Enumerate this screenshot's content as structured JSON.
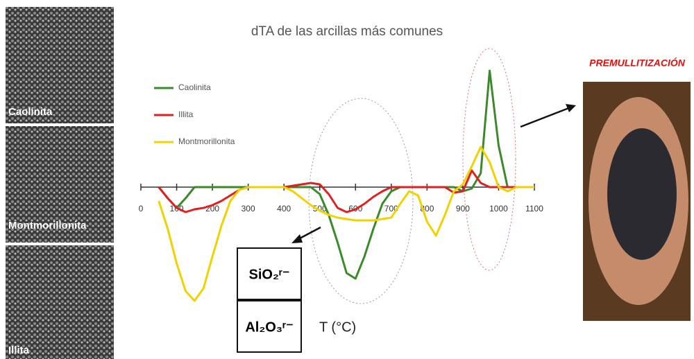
{
  "chart_data": {
    "type": "line",
    "title": "dTA de las arcillas más comunes",
    "x_label": "T (°C)",
    "x": [
      0,
      25,
      50,
      75,
      100,
      125,
      150,
      175,
      200,
      225,
      250,
      275,
      300,
      325,
      350,
      375,
      400,
      425,
      450,
      475,
      500,
      525,
      550,
      575,
      600,
      625,
      650,
      675,
      700,
      725,
      750,
      775,
      800,
      825,
      850,
      875,
      900,
      925,
      950,
      975,
      1000,
      1025,
      1050,
      1075,
      1100
    ],
    "series": [
      {
        "name": "Caolinita",
        "color": "#3a8a2a",
        "values": [
          null,
          null,
          0,
          -0.8,
          -1.5,
          -0.8,
          0,
          0,
          0,
          0,
          0,
          0,
          0,
          0,
          0,
          0,
          0,
          0,
          0,
          0,
          -0.5,
          -2,
          -4,
          -6.2,
          -6.6,
          -5,
          -3,
          -1.2,
          -0.3,
          0,
          0,
          0,
          0,
          0,
          0,
          0,
          -0.3,
          -0.1,
          1,
          8.4,
          3,
          0,
          0,
          0,
          0
        ]
      },
      {
        "name": "Illita",
        "color": "#e02020",
        "values": [
          null,
          null,
          0,
          -0.8,
          -1.5,
          -1.8,
          -1.6,
          -1.5,
          -1.3,
          -1,
          -0.6,
          -0.2,
          0,
          0,
          0,
          0,
          0,
          0.1,
          0.2,
          0.3,
          0.2,
          -0.5,
          -1.5,
          -1.8,
          -1.6,
          -1.2,
          -0.7,
          -0.3,
          0,
          0,
          0,
          0,
          0,
          0,
          0,
          -0.4,
          -0.3,
          1.2,
          0.3,
          0,
          0,
          0,
          0,
          0,
          0
        ]
      },
      {
        "name": "Montmorillonita",
        "color": "#f2d100",
        "values": [
          null,
          null,
          -1,
          -3,
          -5.5,
          -7.5,
          -8.2,
          -7.3,
          -5,
          -2.8,
          -1,
          -0.2,
          0,
          0,
          0,
          0,
          0,
          -0.3,
          -0.8,
          -1.3,
          -1.7,
          -2,
          -2.2,
          -2.3,
          -2.4,
          -2.4,
          -2.4,
          -2.3,
          -2.2,
          -1.2,
          -0.3,
          -0.6,
          -2.5,
          -3.5,
          -2,
          -0.3,
          0.2,
          1.5,
          2.9,
          1.8,
          0,
          -0.3,
          0,
          0,
          0
        ]
      }
    ],
    "xlim": [
      0,
      1100
    ],
    "xticks": [
      0,
      100,
      200,
      300,
      400,
      500,
      600,
      700,
      800,
      900,
      1000,
      1100
    ],
    "ylim": [
      -9,
      9.5
    ]
  },
  "images": {
    "labels": [
      "Caolinita",
      "Montmorillonita",
      "Illita"
    ]
  },
  "annotations": {
    "premullite": "PREMULLITIZACIÓN",
    "box_top": "SiO₂ʳ⁻",
    "box_bottom": "Al₂O₃ʳ⁻"
  }
}
